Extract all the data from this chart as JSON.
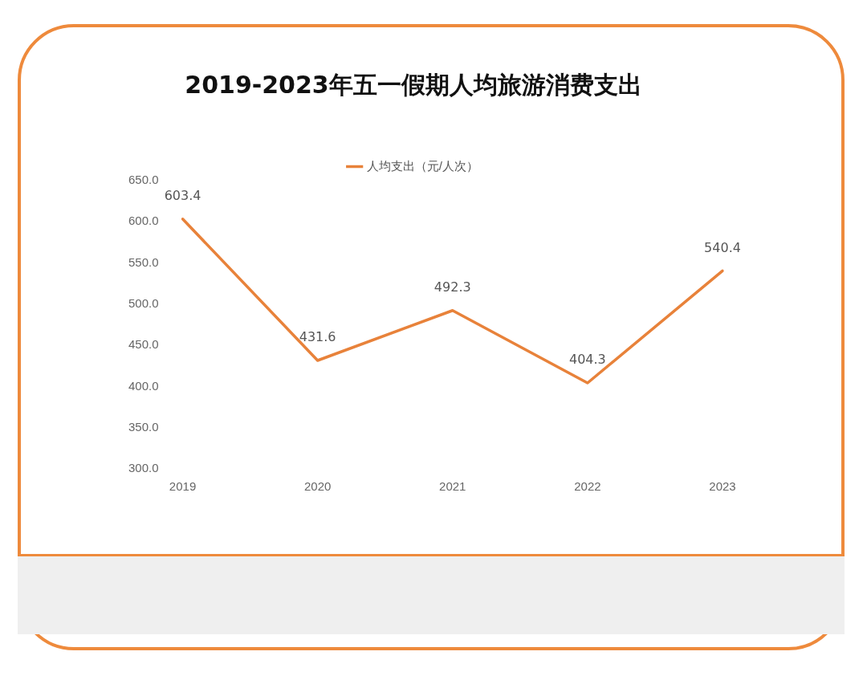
{
  "chart_data": {
    "type": "line",
    "title": "2019-2023年五一假期人均旅游消费支出",
    "categories": [
      "2019",
      "2020",
      "2021",
      "2022",
      "2023"
    ],
    "series": [
      {
        "name": "人均支出（元/人次）",
        "color": "#e8823a",
        "values": [
          603.4,
          431.6,
          492.3,
          404.3,
          540.4
        ]
      }
    ],
    "ylim": [
      300,
      650
    ],
    "yticks": [
      {
        "value": 300,
        "label": "300.0"
      },
      {
        "value": 350,
        "label": "350.0"
      },
      {
        "value": 400,
        "label": "400.0"
      },
      {
        "value": 450,
        "label": "450.0"
      },
      {
        "value": 500,
        "label": "500.0"
      },
      {
        "value": 550,
        "label": "550.0"
      },
      {
        "value": 600,
        "label": "600.0"
      },
      {
        "value": 650,
        "label": "650.0"
      }
    ],
    "grid": false,
    "legend": "top",
    "data_labels": true,
    "marker": "none",
    "line_style": "solid"
  }
}
